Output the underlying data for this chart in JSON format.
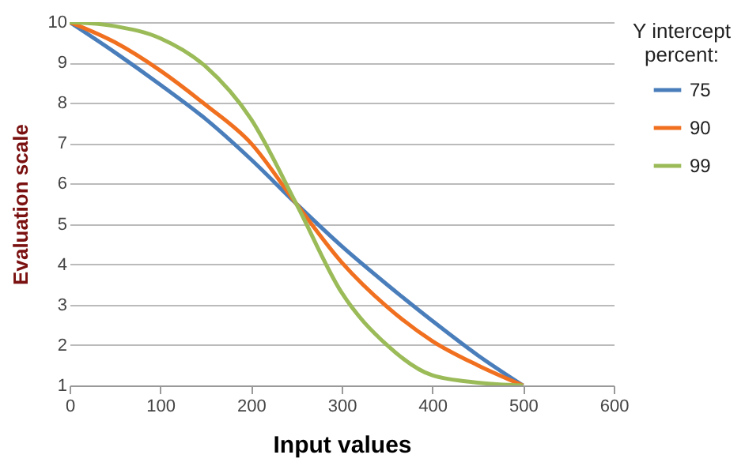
{
  "chart_data": {
    "type": "line",
    "xlabel": "Input values",
    "ylabel": "Evaluation scale",
    "legend_title": "Y intercept percent:",
    "legend": "right",
    "grid": "y",
    "line_style": "solid",
    "xlim": [
      0,
      600
    ],
    "xticks": [
      0,
      100,
      200,
      300,
      400,
      500,
      600
    ],
    "ylim": [
      1,
      10
    ],
    "yticks": [
      1,
      2,
      3,
      4,
      5,
      6,
      7,
      8,
      9,
      10
    ],
    "x": [
      0,
      50,
      100,
      150,
      200,
      250,
      300,
      350,
      400,
      450,
      500
    ],
    "series": [
      {
        "name": "75",
        "color": "#4a7ebb",
        "values": [
          10,
          9.25,
          8.45,
          7.6,
          6.6,
          5.5,
          4.45,
          3.5,
          2.6,
          1.75,
          1
        ]
      },
      {
        "name": "90",
        "color": "#f07020",
        "values": [
          10,
          9.5,
          8.8,
          7.95,
          7.0,
          5.5,
          4.05,
          2.95,
          2.1,
          1.5,
          1
        ]
      },
      {
        "name": "99",
        "color": "#9bbb59",
        "values": [
          10,
          9.9,
          9.6,
          8.9,
          7.6,
          5.5,
          3.3,
          2.0,
          1.25,
          1.07,
          1
        ]
      }
    ]
  }
}
